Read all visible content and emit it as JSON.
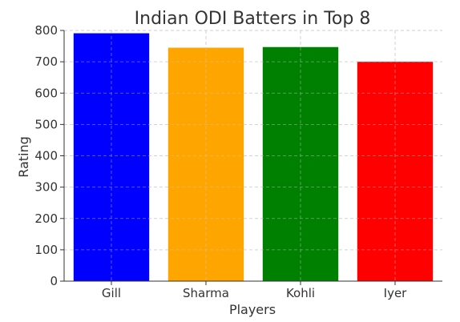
{
  "chart_data": {
    "type": "bar",
    "title": "Indian ODI Batters in Top 8",
    "xlabel": "Players",
    "ylabel": "Rating",
    "categories": [
      "Gill",
      "Sharma",
      "Kohli",
      "Iyer"
    ],
    "values": [
      791,
      745,
      747,
      700
    ],
    "colors": [
      "#0000ff",
      "#ffa500",
      "#008000",
      "#ff0000"
    ],
    "ylim": [
      0,
      800
    ],
    "yticks": [
      0,
      100,
      200,
      300,
      400,
      500,
      600,
      700,
      800
    ],
    "grid": true,
    "legend": false
  }
}
